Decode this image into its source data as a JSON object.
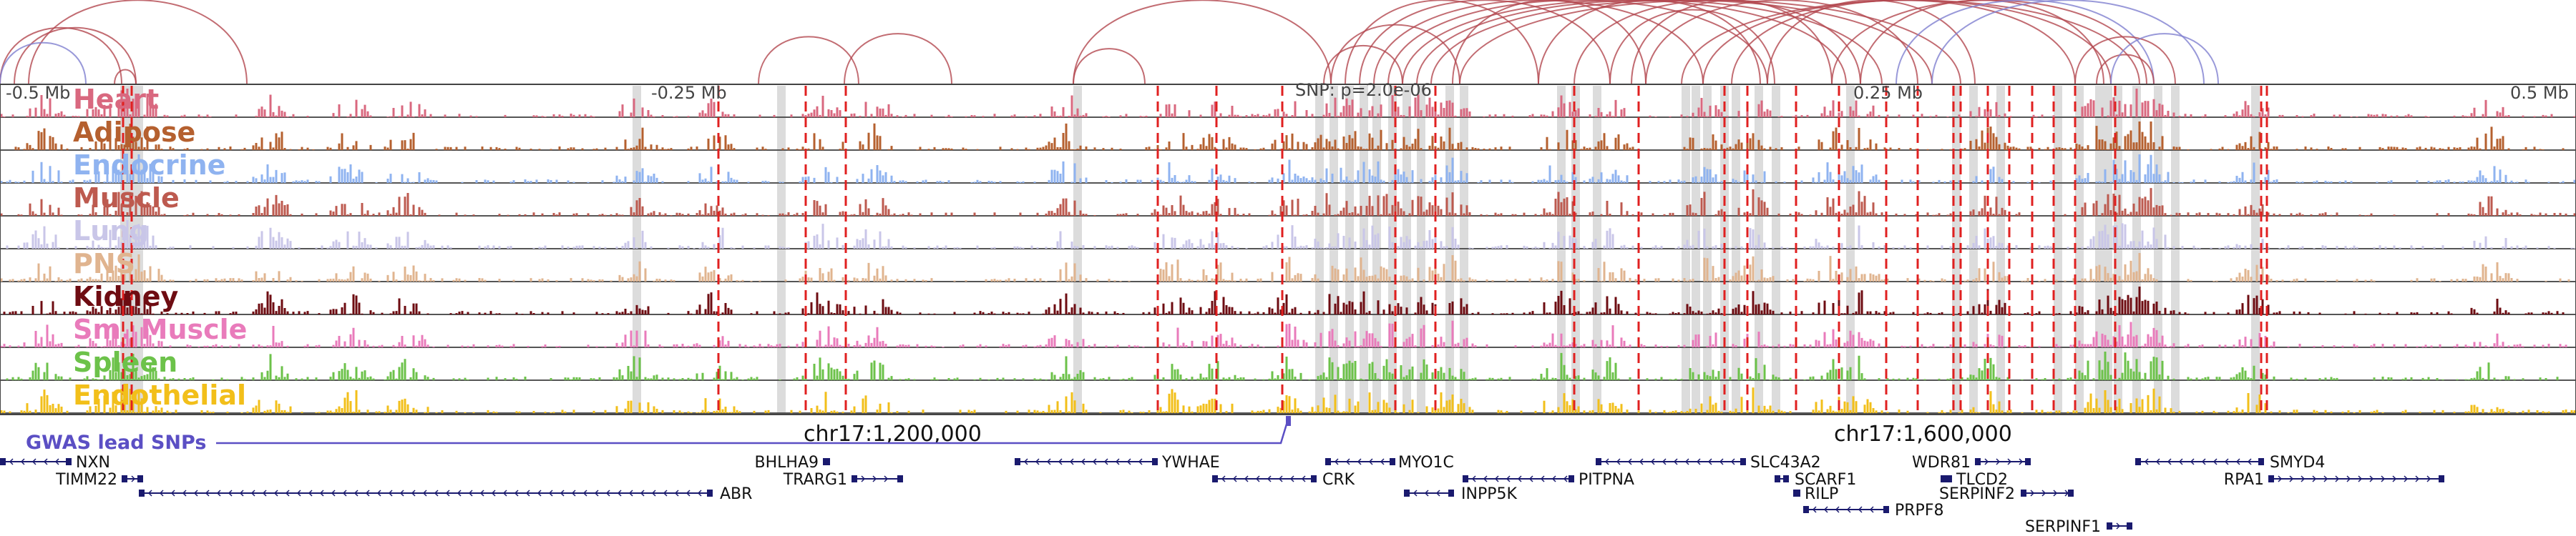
{
  "region": {
    "position_labels": [
      "-0.5 Mb",
      "-0.25 Mb",
      "0.25 Mb",
      "0.5 Mb"
    ],
    "snp_label": "SNP: p=2.0e-06",
    "coord_labels": [
      "chr17:1,200,000",
      "chr17:1,600,000"
    ],
    "gwas_label": "GWAS lead SNPs"
  },
  "tracks": [
    {
      "name": "Heart",
      "color": "#d9687f"
    },
    {
      "name": "Adipose",
      "color": "#b5602f"
    },
    {
      "name": "Endocrine",
      "color": "#8fb3f0"
    },
    {
      "name": "Muscle",
      "color": "#bd5a4f"
    },
    {
      "name": "Lung",
      "color": "#c9c6e8"
    },
    {
      "name": "PNS",
      "color": "#e0b48f"
    },
    {
      "name": "Kidney",
      "color": "#6e0c12"
    },
    {
      "name": "Sm. Muscle",
      "color": "#e97bbb"
    },
    {
      "name": "Spleen",
      "color": "#6cc24a"
    },
    {
      "name": "Endothelial",
      "color": "#f2bf1a"
    }
  ],
  "genes": [
    {
      "name": "NXN"
    },
    {
      "name": "TIMM22"
    },
    {
      "name": "ABR"
    },
    {
      "name": "BHLHA9"
    },
    {
      "name": "TRARG1"
    },
    {
      "name": "YWHAE"
    },
    {
      "name": "CRK"
    },
    {
      "name": "MYO1C"
    },
    {
      "name": "INPP5K"
    },
    {
      "name": "PITPNA"
    },
    {
      "name": "SLC43A2"
    },
    {
      "name": "SCARF1"
    },
    {
      "name": "RILP"
    },
    {
      "name": "PRPF8"
    },
    {
      "name": "WDR81"
    },
    {
      "name": "TLCD2"
    },
    {
      "name": "SERPINF2"
    },
    {
      "name": "SERPINF1"
    },
    {
      "name": "SMYD4"
    },
    {
      "name": "RPA1"
    }
  ],
  "colors": {
    "arc_red": "#b3474f",
    "arc_blue": "#7f7fd0",
    "dashed_line": "#e02020",
    "highlight_band": "#dcdcdc",
    "gene_color": "#1a1a6e",
    "gwas_color": "#5b4fc4"
  }
}
